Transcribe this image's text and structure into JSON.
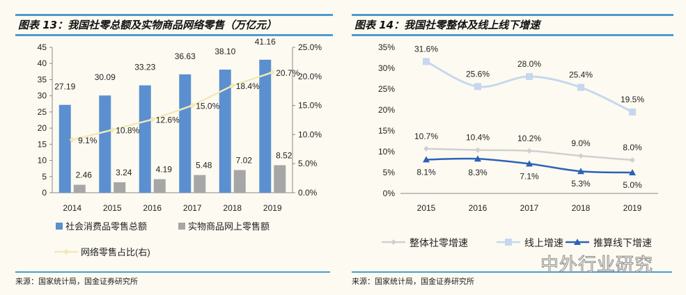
{
  "left": {
    "title": "图表 13：我国社零总额及实物商品网络零售（万亿元）",
    "source": "来源：国家统计局，国金证券研究所"
  },
  "right": {
    "title": "图表 14：我国社零整体及线上线下增速",
    "source": "来源：国家统计局，国金证券研究所"
  },
  "watermark": "中外行业研究",
  "chart_data": [
    {
      "type": "bar",
      "categories": [
        "2014",
        "2015",
        "2016",
        "2017",
        "2018",
        "2019"
      ],
      "ylim": [
        0,
        45
      ],
      "yticks": [
        "0",
        "5",
        "10",
        "15",
        "20",
        "25",
        "30",
        "35",
        "40",
        "45"
      ],
      "y2lim": [
        0,
        25
      ],
      "y2ticks": [
        "0.0%",
        "5.0%",
        "10.0%",
        "15.0%",
        "20.0%",
        "25.0%"
      ],
      "series": [
        {
          "name": "社会消费品零售总额",
          "kind": "bar",
          "color": "#5b8fd0",
          "values": [
            27.19,
            30.09,
            33.23,
            36.63,
            38.1,
            41.16
          ],
          "labels": [
            "27.19",
            "30.09",
            "33.23",
            "36.63",
            "38.10",
            "41.16"
          ]
        },
        {
          "name": "实物商品网上零售额",
          "kind": "bar",
          "color": "#a6a6a6",
          "values": [
            2.46,
            3.24,
            4.19,
            5.48,
            7.02,
            8.52
          ],
          "labels": [
            "2.46",
            "3.24",
            "4.19",
            "5.48",
            "7.02",
            "8.52"
          ]
        },
        {
          "name": "网络零售占比(右)",
          "kind": "line",
          "axis": "right",
          "color": "#f2e8b8",
          "values": [
            9.1,
            10.8,
            12.6,
            15.0,
            18.4,
            20.7
          ],
          "labels": [
            "9.1%",
            "10.8%",
            "12.6%",
            "15.0%",
            "18.4%",
            "20.7%"
          ]
        }
      ],
      "legend": "bottom"
    },
    {
      "type": "line",
      "categories": [
        "2015",
        "2016",
        "2017",
        "2018",
        "2019"
      ],
      "ylim": [
        0,
        35
      ],
      "yticks": [
        "0%",
        "5%",
        "10%",
        "15%",
        "20%",
        "25%",
        "30%",
        "35%"
      ],
      "series": [
        {
          "name": "整体社零增速",
          "color": "#d0d0d0",
          "marker": "diamond",
          "values": [
            10.7,
            10.4,
            10.2,
            9.0,
            8.0
          ],
          "labels": [
            "10.7%",
            "10.4%",
            "10.2%",
            "9.0%",
            "8.0%"
          ]
        },
        {
          "name": "线上增速",
          "color": "#c5d8ee",
          "marker": "square",
          "values": [
            31.6,
            25.6,
            28.0,
            25.4,
            19.5
          ],
          "labels": [
            "31.6%",
            "25.6%",
            "28.0%",
            "25.4%",
            "19.5%"
          ]
        },
        {
          "name": "推算线下增速",
          "color": "#2a62b8",
          "marker": "triangle",
          "values": [
            8.1,
            8.3,
            7.1,
            5.3,
            5.0
          ],
          "labels": [
            "8.1%",
            "8.3%",
            "7.1%",
            "5.3%",
            "5.0%"
          ]
        }
      ],
      "legend": "bottom"
    }
  ]
}
